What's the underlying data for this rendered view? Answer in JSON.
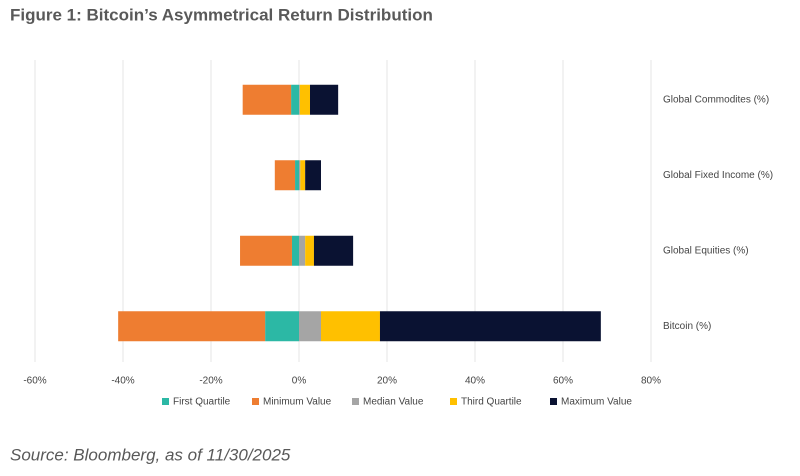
{
  "chart_data": {
    "type": "bar",
    "orientation": "horizontal",
    "title": "Figure 1: Bitcoin’s Asymmetrical Return Distribution",
    "source": "Source: Bloomberg, as of 11/30/2025",
    "categories": [
      "Global Commodites (%)",
      "Global Fixed Income (%)",
      "Global Equities (%)",
      "Bitcoin (%)"
    ],
    "series": [
      {
        "name": "First Quartile",
        "color": "#2cb8a5",
        "values": [
          -1.8,
          -0.9,
          -1.6,
          -7.7
        ]
      },
      {
        "name": "Minimum Value",
        "color": "#ee7d31",
        "values": [
          -12.8,
          -5.5,
          -13.4,
          -41.1
        ]
      },
      {
        "name": "Median Value",
        "color": "#a5a5a5",
        "values": [
          0.2,
          0.3,
          1.4,
          5.0
        ]
      },
      {
        "name": "Third Quartile",
        "color": "#ffc000",
        "values": [
          2.5,
          1.4,
          3.4,
          18.4
        ]
      },
      {
        "name": "Maximum Value",
        "color": "#0a1232",
        "values": [
          8.9,
          5.0,
          12.3,
          68.6
        ]
      }
    ],
    "xlim": [
      -60,
      80
    ],
    "xticks": [
      {
        "value": -60,
        "label": "-60%"
      },
      {
        "value": -40,
        "label": "-40%"
      },
      {
        "value": -20,
        "label": "-20%"
      },
      {
        "value": 0,
        "label": "0%"
      },
      {
        "value": 20,
        "label": "20%"
      },
      {
        "value": 40,
        "label": "40%"
      },
      {
        "value": 60,
        "label": "60%"
      },
      {
        "value": 80,
        "label": "80%"
      }
    ],
    "grid": true,
    "legend": "bottom"
  }
}
